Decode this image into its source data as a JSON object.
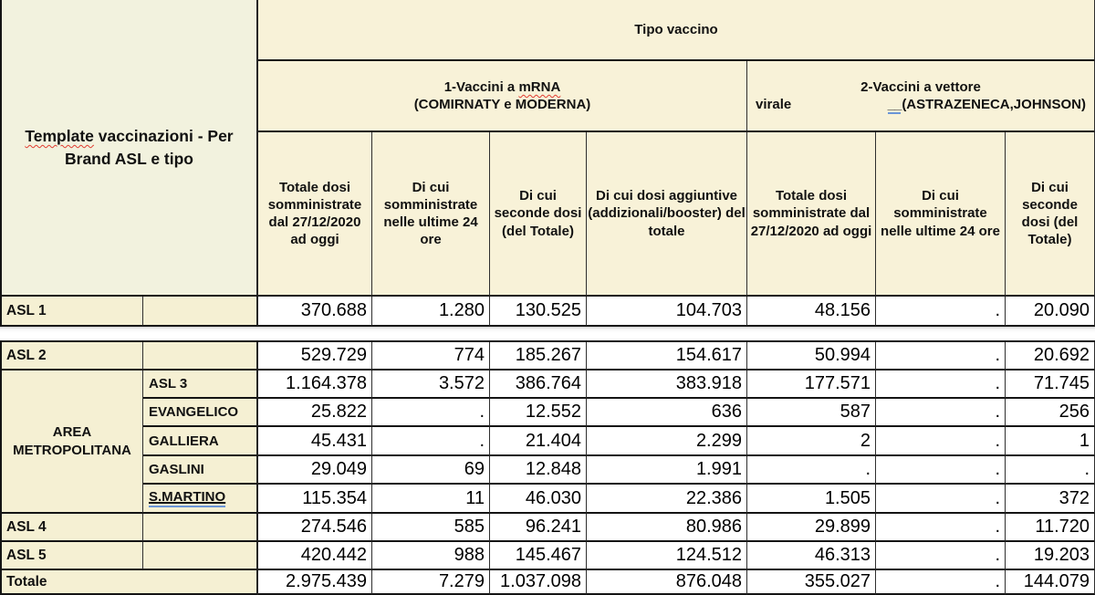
{
  "title_cell": {
    "misspelled_word": "Template",
    "rest": "vaccinazioni - Per Brand ASL e tipo"
  },
  "header": {
    "tipo_vaccino": "Tipo vaccino",
    "group_mrna": {
      "line1_prefix": "1-Vaccini a ",
      "line1_term": "mRNA",
      "line2": "(COMIRNATY e MODERNA)"
    },
    "group_virale": {
      "line1": "2-Vaccini a vettore",
      "line2_left": "virale",
      "line2_mark": "__",
      "line2_right": "(ASTRAZENECA,JOHNSON)"
    },
    "columns": [
      "Totale dosi somministrate dal 27/12/2020 ad oggi",
      "Di cui somministrate nelle ultime 24 ore",
      "Di cui seconde dosi (del Totale)",
      "Di cui dosi aggiuntive (addizionali/booster) del totale",
      "Totale dosi somministrate dal 27/12/2020 ad oggi",
      "Di cui somministrate nelle ultime 24 ore",
      "Di cui seconde dosi (del Totale)"
    ]
  },
  "rows": {
    "asl1": {
      "label": "ASL 1",
      "values": [
        "370.688",
        "1.280",
        "130.525",
        "104.703",
        "48.156",
        ".",
        "20.090"
      ]
    },
    "asl2": {
      "label": "ASL 2",
      "values": [
        "529.729",
        "774",
        "185.267",
        "154.617",
        "50.994",
        ".",
        "20.692"
      ]
    },
    "area_group_label": "AREA METROPOLITANA",
    "asl3": {
      "label": "ASL 3",
      "values": [
        "1.164.378",
        "3.572",
        "386.764",
        "383.918",
        "177.571",
        ".",
        "71.745"
      ]
    },
    "evangelico": {
      "label": "EVANGELICO",
      "values": [
        "25.822",
        ".",
        "12.552",
        "636",
        "587",
        ".",
        "256"
      ]
    },
    "galliera": {
      "label": "GALLIERA",
      "values": [
        "45.431",
        ".",
        "21.404",
        "2.299",
        "2",
        ".",
        "1"
      ]
    },
    "gaslini": {
      "label": "GASLINI",
      "values": [
        "29.049",
        "69",
        "12.848",
        "1.991",
        ".",
        ".",
        "."
      ]
    },
    "smartino": {
      "label": "S.MARTINO",
      "values": [
        "115.354",
        "11",
        "46.030",
        "22.386",
        "1.505",
        ".",
        "372"
      ]
    },
    "asl4": {
      "label": "ASL 4",
      "values": [
        "274.546",
        "585",
        "96.241",
        "80.986",
        "29.899",
        ".",
        "11.720"
      ]
    },
    "asl5": {
      "label": "ASL 5",
      "values": [
        "420.442",
        "988",
        "145.467",
        "124.512",
        "46.313",
        ".",
        "19.203"
      ]
    },
    "totale": {
      "label": "Totale",
      "values": [
        "2.975.439",
        "7.279",
        "1.037.098",
        "876.048",
        "355.027",
        ".",
        "144.079"
      ]
    }
  },
  "colors": {
    "header_bg": "#f8f2d8",
    "template_bg": "#f2f2de",
    "label_bg": "#f5f0d3",
    "border": "#141414",
    "spell_red": "#e03c31",
    "grammar_blue": "#6b96d8"
  }
}
